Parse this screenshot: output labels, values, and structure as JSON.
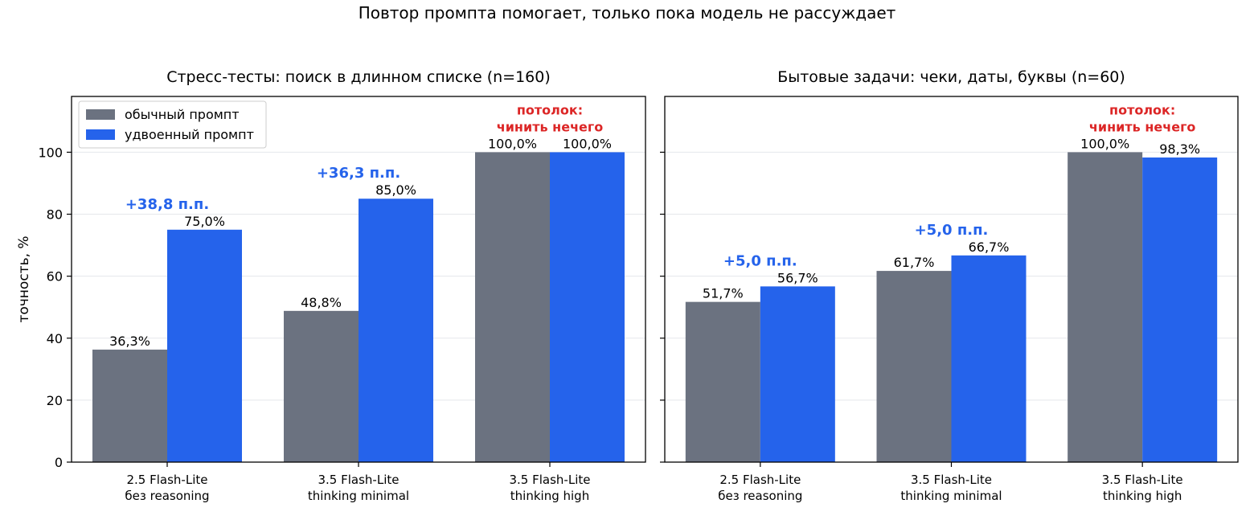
{
  "suptitle": "Повтор промпта помогает, только пока модель не рассуждает",
  "colors": {
    "normal": "#6b7280",
    "doubled": "#2563eb",
    "gain": "#2563eb",
    "ceiling": "#dc2626"
  },
  "legend": {
    "normal_label": "обычный промпт",
    "doubled_label": "удвоенный промпт",
    "placement": "upper-left of left panel"
  },
  "chart_data": [
    {
      "type": "bar",
      "title": "Стресс-тесты: поиск в длинном списке  (n=160)",
      "ylabel": "точность, %",
      "ylim": [
        0,
        118
      ],
      "yticks": [
        0,
        20,
        40,
        60,
        80,
        100
      ],
      "grid": "horizontal",
      "categories": [
        [
          "2.5 Flash-Lite",
          "без reasoning"
        ],
        [
          "3.5 Flash-Lite",
          "thinking minimal"
        ],
        [
          "3.5 Flash-Lite",
          "thinking high"
        ]
      ],
      "series": [
        {
          "name": "обычный промпт",
          "values": [
            36.3,
            48.8,
            100.0
          ],
          "labels": [
            "36,3%",
            "48,8%",
            "100,0%"
          ]
        },
        {
          "name": "удвоенный промпт",
          "values": [
            75.0,
            85.0,
            100.0
          ],
          "labels": [
            "75,0%",
            "85,0%",
            "100,0%"
          ]
        }
      ],
      "annotations": [
        {
          "category": 0,
          "kind": "gain",
          "lines": [
            "+38,8 п.п."
          ]
        },
        {
          "category": 1,
          "kind": "gain",
          "lines": [
            "+36,3 п.п."
          ]
        },
        {
          "category": 2,
          "kind": "ceiling",
          "lines": [
            "потолок:",
            "чинить нечего"
          ]
        }
      ]
    },
    {
      "type": "bar",
      "title": "Бытовые задачи: чеки, даты, буквы  (n=60)",
      "ylabel": "",
      "ylim": [
        0,
        118
      ],
      "yticks": [
        0,
        20,
        40,
        60,
        80,
        100
      ],
      "grid": "horizontal",
      "categories": [
        [
          "2.5 Flash-Lite",
          "без reasoning"
        ],
        [
          "3.5 Flash-Lite",
          "thinking minimal"
        ],
        [
          "3.5 Flash-Lite",
          "thinking high"
        ]
      ],
      "series": [
        {
          "name": "обычный промпт",
          "values": [
            51.7,
            61.7,
            100.0
          ],
          "labels": [
            "51,7%",
            "61,7%",
            "100,0%"
          ]
        },
        {
          "name": "удвоенный промпт",
          "values": [
            56.7,
            66.7,
            98.3
          ],
          "labels": [
            "56,7%",
            "66,7%",
            "98,3%"
          ]
        }
      ],
      "annotations": [
        {
          "category": 0,
          "kind": "gain",
          "lines": [
            "+5,0 п.п."
          ]
        },
        {
          "category": 1,
          "kind": "gain",
          "lines": [
            "+5,0 п.п."
          ]
        },
        {
          "category": 2,
          "kind": "ceiling",
          "lines": [
            "потолок:",
            "чинить нечего"
          ]
        }
      ]
    }
  ]
}
